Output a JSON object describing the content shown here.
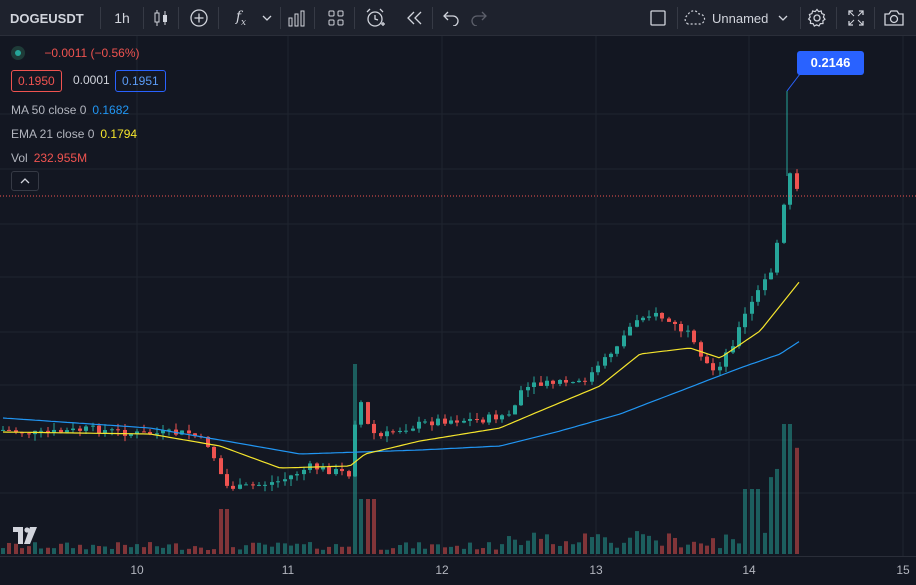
{
  "toolbar": {
    "symbol": "DOGEUSDT",
    "interval": "1h",
    "fx_label": "f",
    "layout_name": "Unnamed"
  },
  "legend": {
    "change": "−0.0011 (−0.56%)",
    "bid": "0.1950",
    "spread": "0.0001",
    "ask": "0.1951",
    "ma_label": "MA 50 close 0",
    "ma_value": "0.1682",
    "ema_label": "EMA 21 close 0",
    "ema_value": "0.1794",
    "vol_label": "Vol",
    "vol_value": "232.955M"
  },
  "price_tag": "0.2146",
  "colors": {
    "up": "#26a69a",
    "down": "#ef5350",
    "ma": "#2196f3",
    "ema": "#f5e52d",
    "background": "#131722",
    "accent": "#2962ff"
  },
  "chart_data": {
    "type": "candlestick",
    "symbol": "DOGEUSDT",
    "interval": "1h",
    "x_ticks": [
      "10",
      "11",
      "12",
      "13",
      "14",
      "15"
    ],
    "highlighted_high": 0.2146,
    "last_close_approx": 0.195,
    "series": [
      {
        "name": "MA 50 close 0",
        "last": 0.1682
      },
      {
        "name": "EMA 21 close 0",
        "last": 0.1794
      },
      {
        "name": "Vol",
        "last": "232.955M"
      }
    ]
  }
}
